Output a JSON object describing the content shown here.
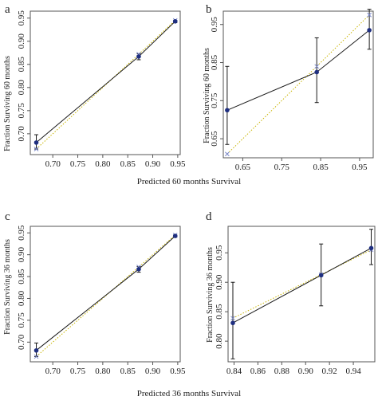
{
  "shared_xlabels": {
    "top": "Predicted 60 months Survival",
    "bottom": "Predicted 36 months Survival"
  },
  "colors": {
    "line": "#1a1a1a",
    "point": "#1f2f80",
    "ideal": "#c8b400",
    "cross": "#7b88c9",
    "axis": "#555555"
  },
  "chart_data": [
    {
      "panel": "a",
      "type": "line",
      "ylabel": "Fraction Surviving 60 months",
      "xlim": [
        0.655,
        0.955
      ],
      "ylim": [
        0.655,
        0.965
      ],
      "xticks": [
        0.7,
        0.75,
        0.8,
        0.85,
        0.9,
        0.95
      ],
      "xtick_labels": [
        "0.70",
        "0.75",
        "0.80",
        "0.85",
        "0.90",
        "0.95"
      ],
      "yticks": [
        0.7,
        0.75,
        0.8,
        0.85,
        0.9,
        0.95
      ],
      "ytick_labels": [
        "0.70",
        "0.75",
        "0.80",
        "0.85",
        "0.90",
        "0.95"
      ],
      "points": [
        {
          "x": 0.667,
          "y": 0.681,
          "err_low": 0.667,
          "err_high": 0.698
        },
        {
          "x": 0.872,
          "y": 0.867,
          "err_low": 0.86,
          "err_high": 0.873
        },
        {
          "x": 0.945,
          "y": 0.943,
          "err_low": 0.94,
          "err_high": 0.945
        }
      ]
    },
    {
      "panel": "b",
      "type": "line",
      "ylabel": "Fraction Surviving 60 months",
      "xlim": [
        0.6,
        0.985
      ],
      "ylim": [
        0.6,
        0.985
      ],
      "xticks": [
        0.65,
        0.75,
        0.85,
        0.95
      ],
      "xtick_labels": [
        "0.65",
        "0.75",
        "0.85",
        "0.95"
      ],
      "yticks": [
        0.65,
        0.75,
        0.85,
        0.95
      ],
      "ytick_labels": [
        "0.65",
        "0.75",
        "0.85",
        "0.95"
      ],
      "points": [
        {
          "x": 0.61,
          "y": 0.725,
          "err_low": 0.635,
          "err_high": 0.84
        },
        {
          "x": 0.84,
          "y": 0.825,
          "err_low": 0.745,
          "err_high": 0.915
        },
        {
          "x": 0.975,
          "y": 0.935,
          "err_low": 0.885,
          "err_high": 0.99
        }
      ]
    },
    {
      "panel": "c",
      "type": "line",
      "ylabel": "Fraction Surviving 36 months",
      "xlim": [
        0.655,
        0.955
      ],
      "ylim": [
        0.655,
        0.965
      ],
      "xticks": [
        0.7,
        0.75,
        0.8,
        0.85,
        0.9,
        0.95
      ],
      "xtick_labels": [
        "0.70",
        "0.75",
        "0.80",
        "0.85",
        "0.90",
        "0.95"
      ],
      "yticks": [
        0.7,
        0.75,
        0.8,
        0.85,
        0.9,
        0.95
      ],
      "ytick_labels": [
        "0.70",
        "0.75",
        "0.80",
        "0.85",
        "0.90",
        "0.95"
      ],
      "points": [
        {
          "x": 0.667,
          "y": 0.681,
          "err_low": 0.667,
          "err_high": 0.698
        },
        {
          "x": 0.872,
          "y": 0.867,
          "err_low": 0.86,
          "err_high": 0.873
        },
        {
          "x": 0.945,
          "y": 0.943,
          "err_low": 0.94,
          "err_high": 0.945
        }
      ]
    },
    {
      "panel": "d",
      "type": "line",
      "ylabel": "Fraction Surviving 36 months",
      "xlim": [
        0.835,
        0.958
      ],
      "ylim": [
        0.765,
        0.995
      ],
      "xticks": [
        0.84,
        0.86,
        0.88,
        0.9,
        0.92,
        0.94
      ],
      "xtick_labels": [
        "0.84",
        "0.86",
        "0.88",
        "0.90",
        "0.92",
        "0.94"
      ],
      "yticks": [
        0.8,
        0.85,
        0.9,
        0.95
      ],
      "ytick_labels": [
        "0.80",
        "0.85",
        "0.90",
        "0.95"
      ],
      "points": [
        {
          "x": 0.839,
          "y": 0.831,
          "err_low": 0.77,
          "err_high": 0.9
        },
        {
          "x": 0.913,
          "y": 0.912,
          "err_low": 0.86,
          "err_high": 0.965
        },
        {
          "x": 0.955,
          "y": 0.958,
          "err_low": 0.93,
          "err_high": 0.99
        }
      ]
    }
  ]
}
